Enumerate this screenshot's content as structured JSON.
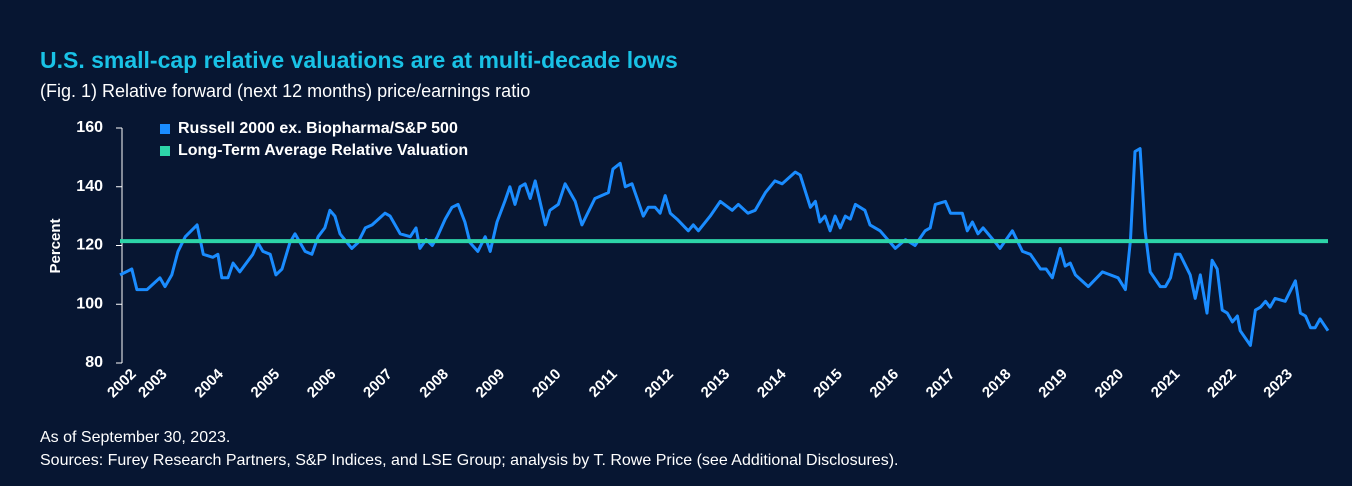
{
  "chart_data": {
    "type": "line",
    "title": "U.S. small-cap relative valuations are at multi-decade lows",
    "subtitle": "(Fig. 1) Relative forward (next 12 months) price/earnings ratio",
    "y_label": "Percent",
    "notes": [
      "As of September 30, 2023.",
      "Sources: Furey Research Partners, S&P Indices, and LSE Group; analysis by T. Rowe Price (see Additional Disclosures)."
    ],
    "xlim": [
      2002.2,
      2023.67
    ],
    "xticks": [
      {
        "value": 2002.45,
        "label": "2002"
      },
      2003,
      2004,
      2005,
      2006,
      2007,
      2008,
      2009,
      2010,
      2011,
      2012,
      2013,
      2014,
      2015,
      2016,
      2017,
      2018,
      2019,
      2020,
      2021,
      2022,
      2023
    ],
    "ylim": [
      80,
      160
    ],
    "yticks": [
      80,
      100,
      120,
      140,
      160
    ],
    "legend": "top-left",
    "series": [
      {
        "name": "Russell 2000 ex. Biopharma/S&P 500",
        "color": "#1a8cff",
        "x": [
          2002.2,
          2002.41,
          2002.5,
          2002.68,
          2002.91,
          2003.0,
          2003.12,
          2003.23,
          2003.36,
          2003.57,
          2003.68,
          2003.85,
          2003.94,
          2004.01,
          2004.12,
          2004.21,
          2004.33,
          2004.56,
          2004.65,
          2004.74,
          2004.87,
          2004.97,
          2005.08,
          2005.22,
          2005.31,
          2005.49,
          2005.61,
          2005.72,
          2005.84,
          2005.93,
          2006.02,
          2006.11,
          2006.32,
          2006.43,
          2006.56,
          2006.68,
          2006.91,
          2007.0,
          2007.18,
          2007.36,
          2007.46,
          2007.53,
          2007.64,
          2007.75,
          2007.84,
          2007.98,
          2008.1,
          2008.21,
          2008.33,
          2008.42,
          2008.56,
          2008.69,
          2008.78,
          2008.9,
          2009.04,
          2009.13,
          2009.22,
          2009.31,
          2009.4,
          2009.49,
          2009.58,
          2009.76,
          2009.84,
          2009.99,
          2010.11,
          2010.29,
          2010.41,
          2010.64,
          2010.88,
          2010.96,
          2011.09,
          2011.18,
          2011.3,
          2011.5,
          2011.59,
          2011.71,
          2011.8,
          2011.89,
          2011.98,
          2012.1,
          2012.3,
          2012.39,
          2012.48,
          2012.69,
          2012.87,
          2013.08,
          2013.19,
          2013.36,
          2013.49,
          2013.67,
          2013.84,
          2013.97,
          2014.2,
          2014.29,
          2014.47,
          2014.56,
          2014.64,
          2014.73,
          2014.82,
          2014.91,
          2015.0,
          2015.09,
          2015.18,
          2015.27,
          2015.44,
          2015.53,
          2015.71,
          2015.98,
          2016.16,
          2016.33,
          2016.51,
          2016.6,
          2016.69,
          2016.87,
          2016.96,
          2017.17,
          2017.26,
          2017.35,
          2017.45,
          2017.54,
          2017.76,
          2017.84,
          2018.06,
          2018.24,
          2018.38,
          2018.56,
          2018.66,
          2018.77,
          2018.91,
          2019.0,
          2019.09,
          2019.18,
          2019.41,
          2019.66,
          2019.94,
          2020.07,
          2020.16,
          2020.24,
          2020.33,
          2020.42,
          2020.51,
          2020.69,
          2020.78,
          2020.87,
          2020.96,
          2021.04,
          2021.22,
          2021.31,
          2021.4,
          2021.52,
          2021.61,
          2021.7,
          2021.79,
          2021.88,
          2021.97,
          2022.06,
          2022.11,
          2022.29,
          2022.38,
          2022.47,
          2022.56,
          2022.64,
          2022.73,
          2022.91,
          2023.09,
          2023.18,
          2023.27,
          2023.36,
          2023.44,
          2023.53,
          2023.67
        ],
        "values": [
          110,
          112,
          105,
          105,
          109,
          106,
          110,
          118,
          123,
          127,
          117,
          116,
          117,
          109,
          109,
          114,
          111,
          117,
          121,
          118,
          117,
          110,
          112,
          121,
          124,
          118,
          117,
          123,
          126,
          132,
          130,
          124,
          119,
          121,
          126,
          127,
          131,
          130,
          124,
          123,
          126,
          119,
          122,
          120,
          123,
          129,
          133,
          134,
          128,
          121,
          118,
          123,
          118,
          128,
          135,
          140,
          134,
          140,
          141,
          136,
          142,
          127,
          132,
          134,
          141,
          135,
          127,
          136,
          138,
          146,
          148,
          140,
          141,
          130,
          133,
          133,
          131,
          137,
          131,
          129,
          125,
          127,
          125,
          130,
          135,
          132,
          134,
          131,
          132,
          138,
          142,
          141,
          145,
          144,
          133,
          135,
          128,
          130,
          125,
          130,
          126,
          130,
          129,
          134,
          132,
          127,
          125,
          119,
          122,
          120,
          125,
          126,
          134,
          135,
          131,
          131,
          125,
          128,
          124,
          126,
          121,
          119,
          125,
          118,
          117,
          112,
          112,
          109,
          119,
          113,
          114,
          110,
          106,
          111,
          109,
          105,
          122,
          152,
          153,
          125,
          111,
          106,
          106,
          109,
          117,
          117,
          110,
          102,
          110,
          97,
          115,
          112,
          98,
          97,
          94,
          96,
          91,
          86,
          98,
          99,
          101,
          99,
          102,
          101,
          108,
          97,
          96,
          92,
          92,
          95,
          91
        ]
      },
      {
        "name": "Long-Term Average Relative Valuation",
        "color": "#2dd4a8",
        "x": [
          2002.2,
          2023.67
        ],
        "values": [
          121.5,
          121.5
        ]
      }
    ]
  }
}
